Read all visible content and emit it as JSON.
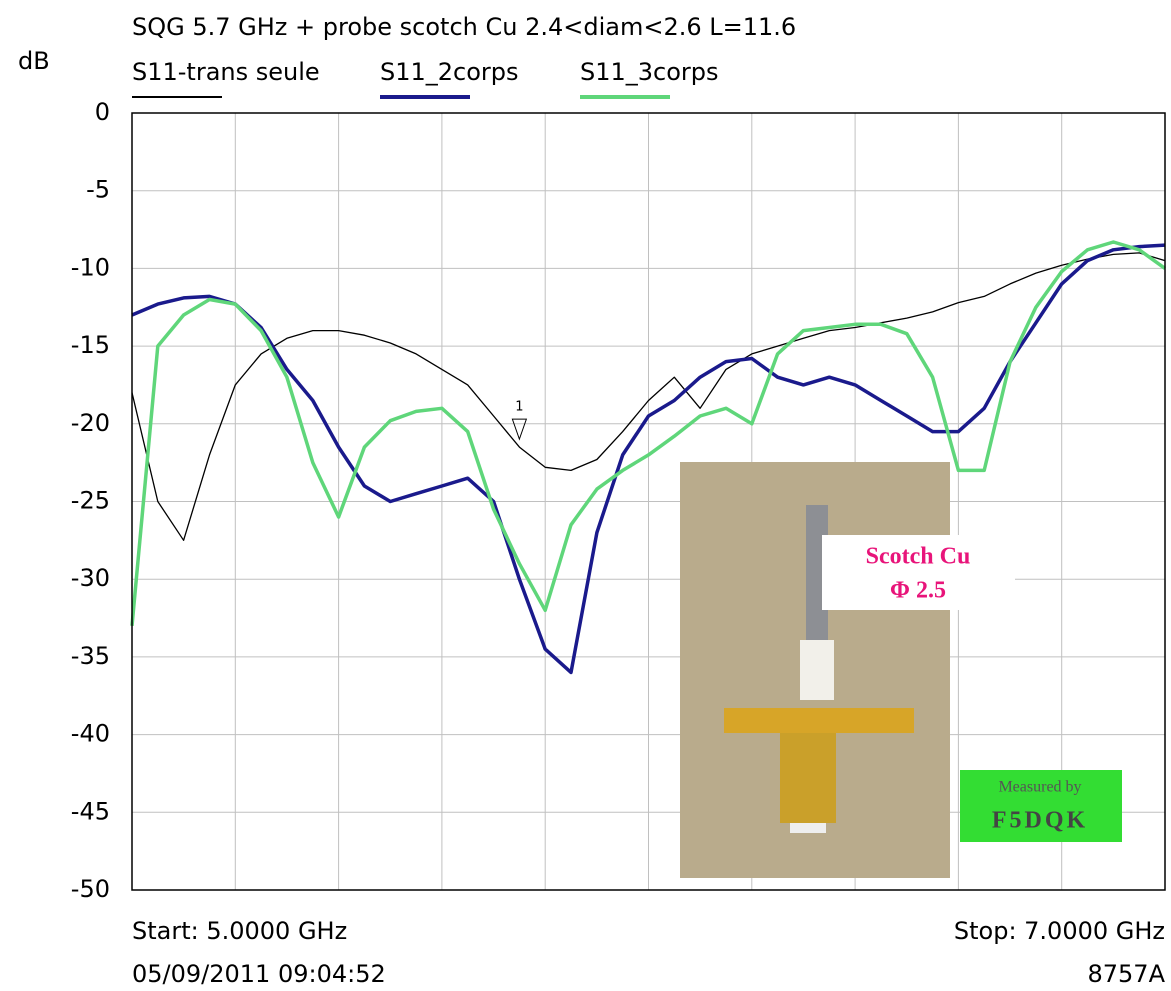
{
  "chart_data": {
    "type": "line",
    "title": "SQG 5.7 GHz + probe scotch Cu 2.4<diam<2.6 L=11.6",
    "y_label": "dB",
    "x": [
      5.0,
      5.05,
      5.1,
      5.15,
      5.2,
      5.25,
      5.3,
      5.35,
      5.4,
      5.45,
      5.5,
      5.55,
      5.6,
      5.65,
      5.7,
      5.75,
      5.8,
      5.85,
      5.9,
      5.95,
      6.0,
      6.05,
      6.1,
      6.15,
      6.2,
      6.25,
      6.3,
      6.35,
      6.4,
      6.45,
      6.5,
      6.55,
      6.6,
      6.65,
      6.7,
      6.75,
      6.8,
      6.85,
      6.9,
      6.95,
      7.0
    ],
    "xlim": [
      5.0,
      7.0
    ],
    "ylim": [
      -50,
      0
    ],
    "yticks": [
      0,
      -5,
      -10,
      -15,
      -20,
      -25,
      -30,
      -35,
      -40,
      -45,
      -50
    ],
    "grid": true,
    "series": [
      {
        "name": "S11-trans seule",
        "color": "#000000",
        "values": [
          -18,
          -25,
          -27.5,
          -22,
          -17.5,
          -15.5,
          -14.5,
          -14,
          -14,
          -14.3,
          -14.8,
          -15.5,
          -16.5,
          -17.5,
          -19.5,
          -21.5,
          -22.8,
          -23,
          -22.3,
          -20.5,
          -18.5,
          -17,
          -19,
          -16.5,
          -15.5,
          -15,
          -14.5,
          -14,
          -13.8,
          -13.5,
          -13.2,
          -12.8,
          -12.2,
          -11.8,
          -11,
          -10.3,
          -9.8,
          -9.4,
          -9.1,
          -9,
          -9.5
        ]
      },
      {
        "name": "S11_2corps",
        "color": "#1a1a8c",
        "values": [
          -13,
          -12.3,
          -11.9,
          -11.8,
          -12.3,
          -13.8,
          -16.5,
          -18.5,
          -21.5,
          -24,
          -25,
          -24.5,
          -24,
          -23.5,
          -25,
          -30,
          -34.5,
          -36,
          -27,
          -22,
          -19.5,
          -18.5,
          -17,
          -16,
          -15.8,
          -17,
          -17.5,
          -17,
          -17.5,
          -18.5,
          -19.5,
          -20.5,
          -20.5,
          -19,
          -16,
          -13.5,
          -11,
          -9.5,
          -8.8,
          -8.6,
          -8.5
        ]
      },
      {
        "name": "S11_3corps",
        "color": "#5fd67a",
        "values": [
          -33,
          -15,
          -13,
          -12,
          -12.3,
          -14,
          -17,
          -22.5,
          -26,
          -21.5,
          -19.8,
          -19.2,
          -19,
          -20.5,
          -25.5,
          -29,
          -32,
          -26.5,
          -24.2,
          -23,
          -22,
          -20.8,
          -19.5,
          -19,
          -20,
          -15.5,
          -14,
          -13.8,
          -13.6,
          -13.6,
          -14.2,
          -17,
          -23,
          -23,
          -16,
          -12.5,
          -10.2,
          -8.8,
          -8.3,
          -8.8,
          -10
        ]
      }
    ],
    "start_label": "Start: 5.0000 GHz",
    "stop_label": "Stop: 7.0000 GHz",
    "timestamp": "05/09/2011 09:04:52",
    "instrument": "8757A",
    "marker_label": "1",
    "inset_label_1": "Scotch Cu",
    "inset_label_2": "Φ 2.5",
    "badge_line_1": "Measured by",
    "badge_line_2": "F5DQK"
  }
}
